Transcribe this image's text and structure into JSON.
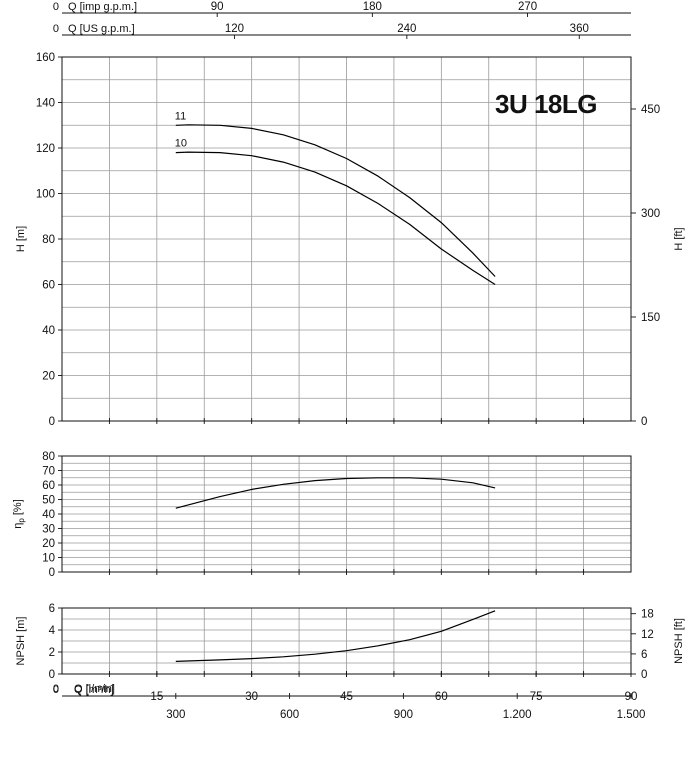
{
  "title": "3U 18LG",
  "top_axes": {
    "imp": {
      "label": "Q [imp g.p.m.]",
      "zero": "0",
      "ticks": [
        {
          "v": 90,
          "t": "90"
        },
        {
          "v": 180,
          "t": "180"
        },
        {
          "v": 270,
          "t": "270"
        }
      ],
      "max": 330
    },
    "us": {
      "label": "Q [US g.p.m.]",
      "zero": "0",
      "ticks": [
        {
          "v": 120,
          "t": "120"
        },
        {
          "v": 240,
          "t": "240"
        },
        {
          "v": 360,
          "t": "360"
        }
      ],
      "max": 396
    }
  },
  "bottom_axes": {
    "m3h": {
      "label": "Q [m³/h]",
      "zero": "0",
      "ticks": [
        {
          "v": 15,
          "t": "15"
        },
        {
          "v": 30,
          "t": "30"
        },
        {
          "v": 45,
          "t": "45"
        },
        {
          "v": 60,
          "t": "60"
        },
        {
          "v": 75,
          "t": "75"
        },
        {
          "v": 90,
          "t": "90"
        }
      ],
      "max": 90
    },
    "lmin": {
      "label": "Q [l/min]",
      "zero": "0",
      "ticks": [
        {
          "v": 300,
          "t": "300"
        },
        {
          "v": 600,
          "t": "600"
        },
        {
          "v": 900,
          "t": "900"
        },
        {
          "v": 1200,
          "t": "1.200"
        },
        {
          "v": 1500,
          "t": "1.500"
        }
      ],
      "max": 1500
    }
  },
  "chart_data": [
    {
      "type": "line",
      "panel": "head",
      "xlabel": "Q [m³/h]",
      "xlim": [
        0,
        90
      ],
      "ylabel": "H [m]",
      "ylim": [
        0,
        160
      ],
      "yticks": [
        0,
        20,
        40,
        60,
        80,
        100,
        120,
        140,
        160
      ],
      "ylabel_right": "H [ft]",
      "ylim_right": [
        0,
        525
      ],
      "yticks_right": [
        0,
        150,
        300,
        450
      ],
      "grid": true,
      "series": [
        {
          "name": "11",
          "x": [
            18,
            20,
            25,
            30,
            35,
            40,
            45,
            50,
            55,
            60,
            65,
            68.5
          ],
          "y": [
            130,
            130.2,
            130,
            128.6,
            125.8,
            121.4,
            115.4,
            107.6,
            98.2,
            87.2,
            73.8,
            63.5
          ]
        },
        {
          "name": "10",
          "x": [
            18,
            20,
            25,
            30,
            35,
            40,
            45,
            50,
            55,
            60,
            65,
            68.5
          ],
          "y": [
            118,
            118.2,
            118,
            116.6,
            113.8,
            109.4,
            103.4,
            95.6,
            86.4,
            75.6,
            66.2,
            60
          ]
        }
      ]
    },
    {
      "type": "line",
      "panel": "efficiency",
      "xlabel": "Q [m³/h]",
      "xlim": [
        0,
        90
      ],
      "ylabel": "η",
      "ylabel_sub": "p",
      "ylabel_unit": " [%]",
      "ylim": [
        0,
        80
      ],
      "yticks": [
        0,
        10,
        20,
        30,
        40,
        50,
        60,
        70,
        80
      ],
      "grid": true,
      "series": [
        {
          "x": [
            18,
            25,
            30,
            35,
            40,
            45,
            50,
            55,
            60,
            65,
            68.5
          ],
          "y": [
            44,
            52,
            57,
            60.5,
            63,
            64.5,
            65,
            65,
            64,
            61.5,
            58
          ]
        }
      ]
    },
    {
      "type": "line",
      "panel": "npsh",
      "xlabel": "Q [m³/h]",
      "xlim": [
        0,
        90
      ],
      "ylabel": "NPSH [m]",
      "ylim": [
        0,
        6
      ],
      "yticks": [
        0,
        2,
        4,
        6
      ],
      "ylabel_right": "NPSH [ft]",
      "ylim_right": [
        0,
        19.7
      ],
      "yticks_right": [
        0,
        6,
        12,
        18
      ],
      "grid": true,
      "series": [
        {
          "x": [
            18,
            25,
            30,
            35,
            40,
            45,
            50,
            55,
            60,
            65,
            68.5
          ],
          "y": [
            1.15,
            1.28,
            1.4,
            1.56,
            1.8,
            2.12,
            2.56,
            3.12,
            3.88,
            4.96,
            5.75
          ]
        }
      ]
    }
  ]
}
